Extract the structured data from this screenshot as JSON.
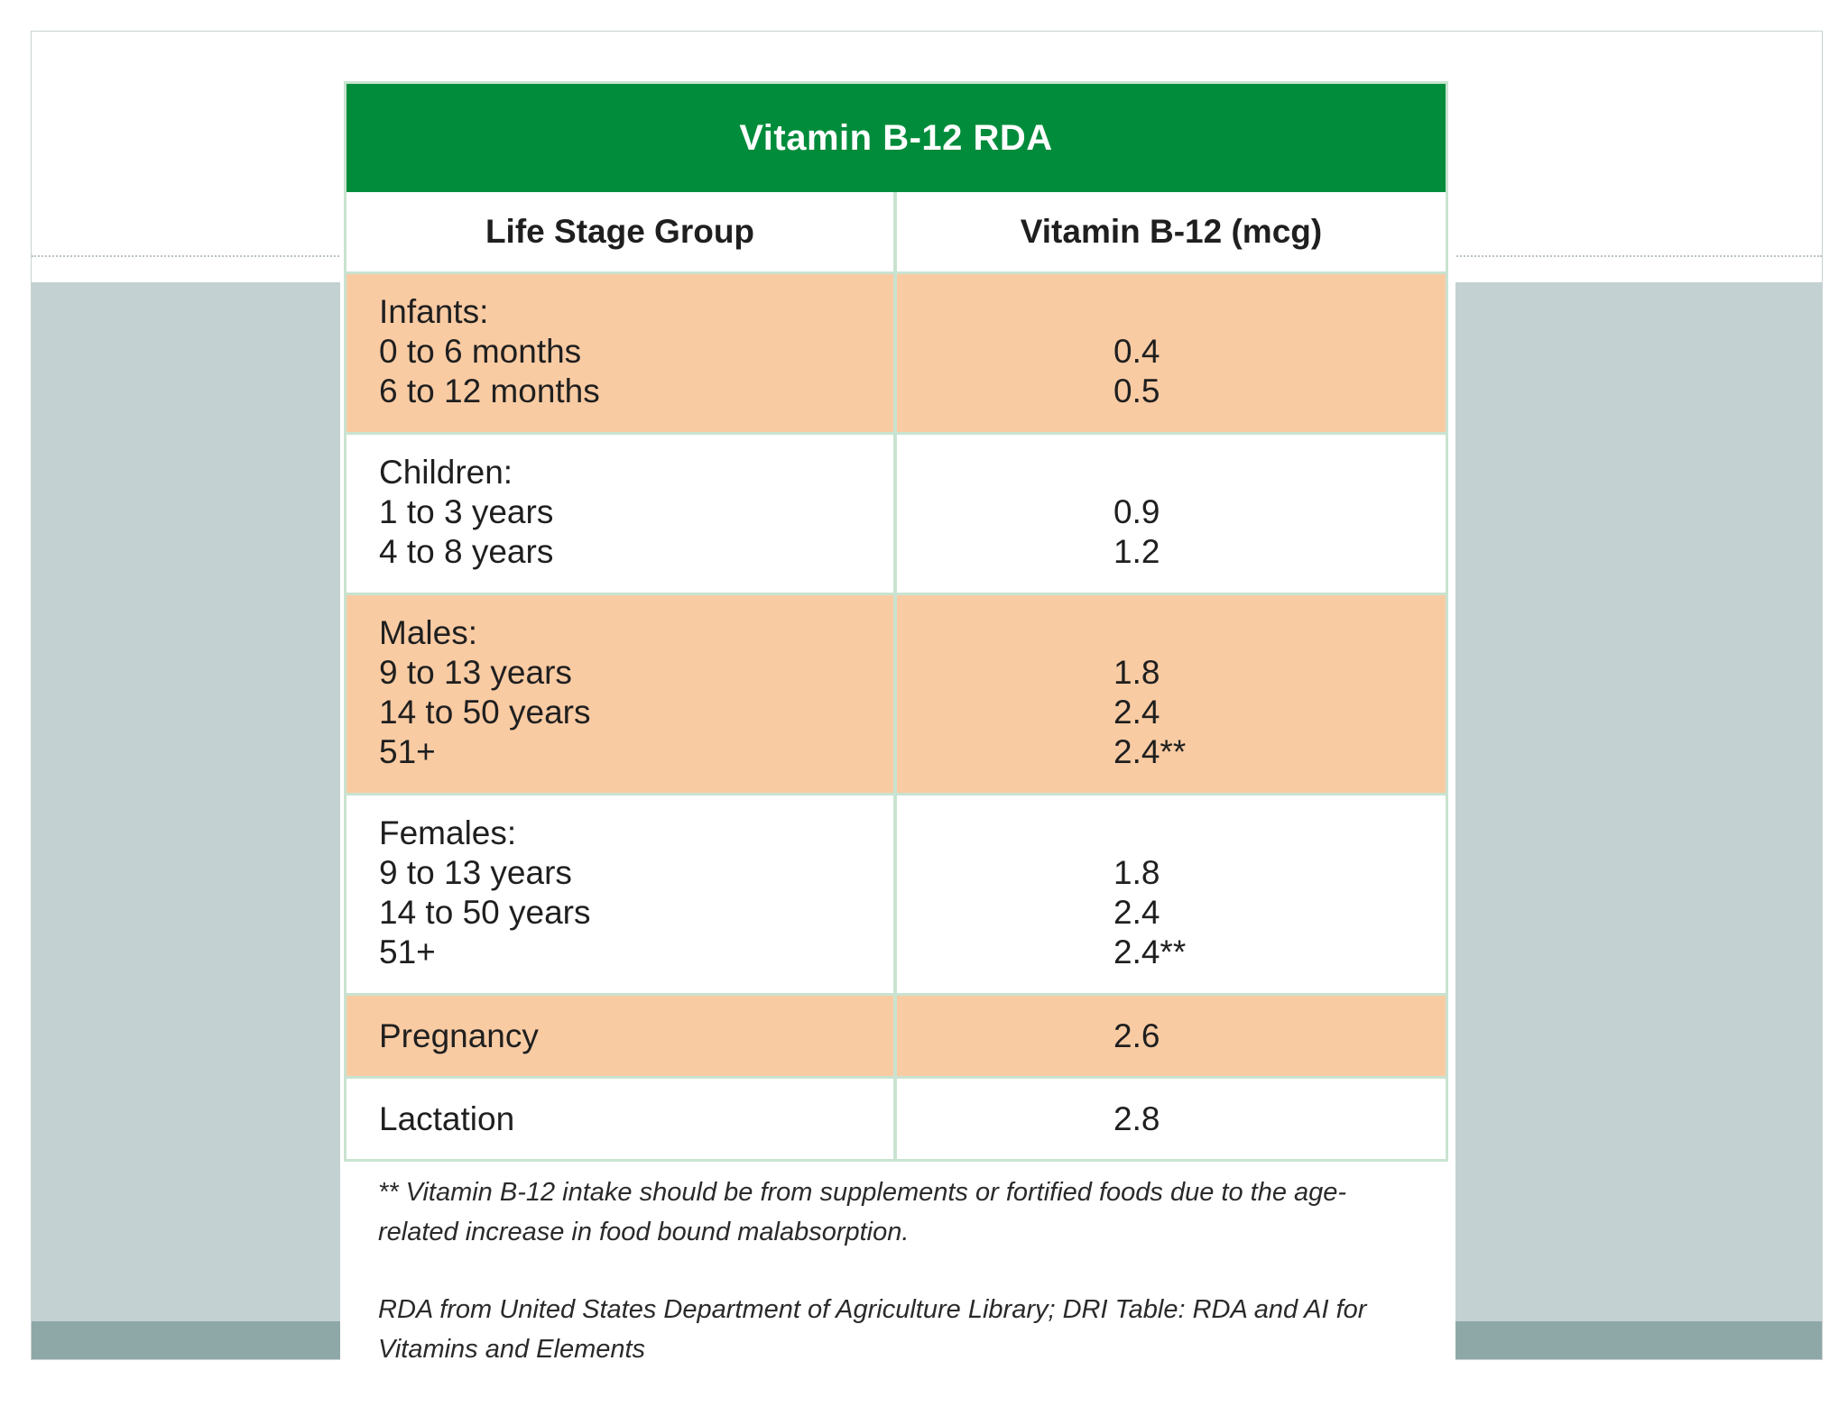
{
  "table": {
    "title": "Vitamin B-12 RDA",
    "header": {
      "left": "Life Stage Group",
      "right": "Vitamin B-12 (mcg)"
    },
    "groups": [
      {
        "label": "Infants:",
        "items": [
          "0 to 6 months",
          "6 to 12 months"
        ],
        "values": [
          "0.4",
          "0.5"
        ],
        "shaded": true
      },
      {
        "label": "Children:",
        "items": [
          "1 to 3 years",
          "4 to 8 years"
        ],
        "values": [
          "0.9",
          "1.2"
        ],
        "shaded": false
      },
      {
        "label": "Males:",
        "items": [
          "9 to 13 years",
          "14 to 50 years",
          "51+"
        ],
        "values": [
          "1.8",
          "2.4",
          "2.4**"
        ],
        "shaded": true
      },
      {
        "label": "Females:",
        "items": [
          "9 to 13 years",
          "14 to 50 years",
          "51+"
        ],
        "values": [
          "1.8",
          "2.4",
          "2.4**"
        ],
        "shaded": false
      }
    ],
    "single_rows": [
      {
        "label": "Pregnancy",
        "value": "2.6",
        "shaded": true
      },
      {
        "label": "Lactation",
        "value": "2.8",
        "shaded": false
      }
    ],
    "footnote": "** Vitamin B-12 intake should be from supplements or fortified foods due to the age-related increase in food bound malabsorption.",
    "source": "RDA from United States Department of Agriculture Library; DRI Table: RDA and AI for Vitamins and Elements"
  },
  "colors": {
    "title_bg": "#008c3b",
    "shaded_row": "#f9cba3",
    "slide_band": "#c3d1d2",
    "slide_footer": "#8ea8a8"
  }
}
